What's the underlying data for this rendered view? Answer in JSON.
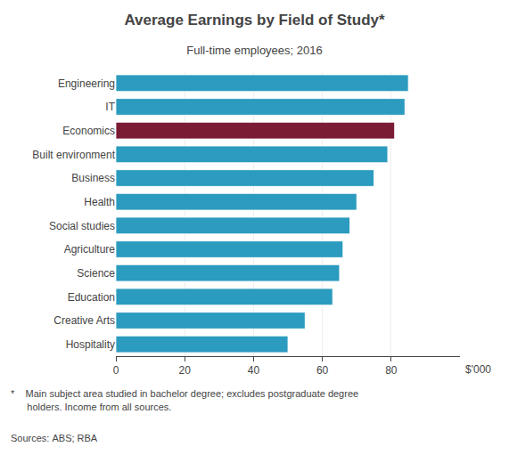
{
  "chart_data": {
    "type": "bar",
    "orientation": "horizontal",
    "title": "Average Earnings by Field of Study*",
    "subtitle": "Full-time employees; 2016",
    "categories": [
      "Engineering",
      "IT",
      "Economics",
      "Built environment",
      "Business",
      "Health",
      "Social studies",
      "Agriculture",
      "Science",
      "Education",
      "Creative Arts",
      "Hospitality"
    ],
    "values": [
      85,
      84,
      81,
      79,
      75,
      70,
      68,
      66,
      65,
      63,
      55,
      50
    ],
    "colors": [
      "#2b9bbf",
      "#2b9bbf",
      "#7b1c35",
      "#2b9bbf",
      "#2b9bbf",
      "#2b9bbf",
      "#2b9bbf",
      "#2b9bbf",
      "#2b9bbf",
      "#2b9bbf",
      "#2b9bbf",
      "#2b9bbf"
    ],
    "xlim": [
      0,
      100
    ],
    "xticks": [
      0,
      20,
      40,
      60,
      80
    ],
    "xlabel": "$'000",
    "grid": true,
    "annotations": [
      "*    Main subject area studied in bachelor degree; excludes postgraduate degree",
      "      holders. Income from all sources.",
      "Sources: ABS; RBA"
    ]
  }
}
